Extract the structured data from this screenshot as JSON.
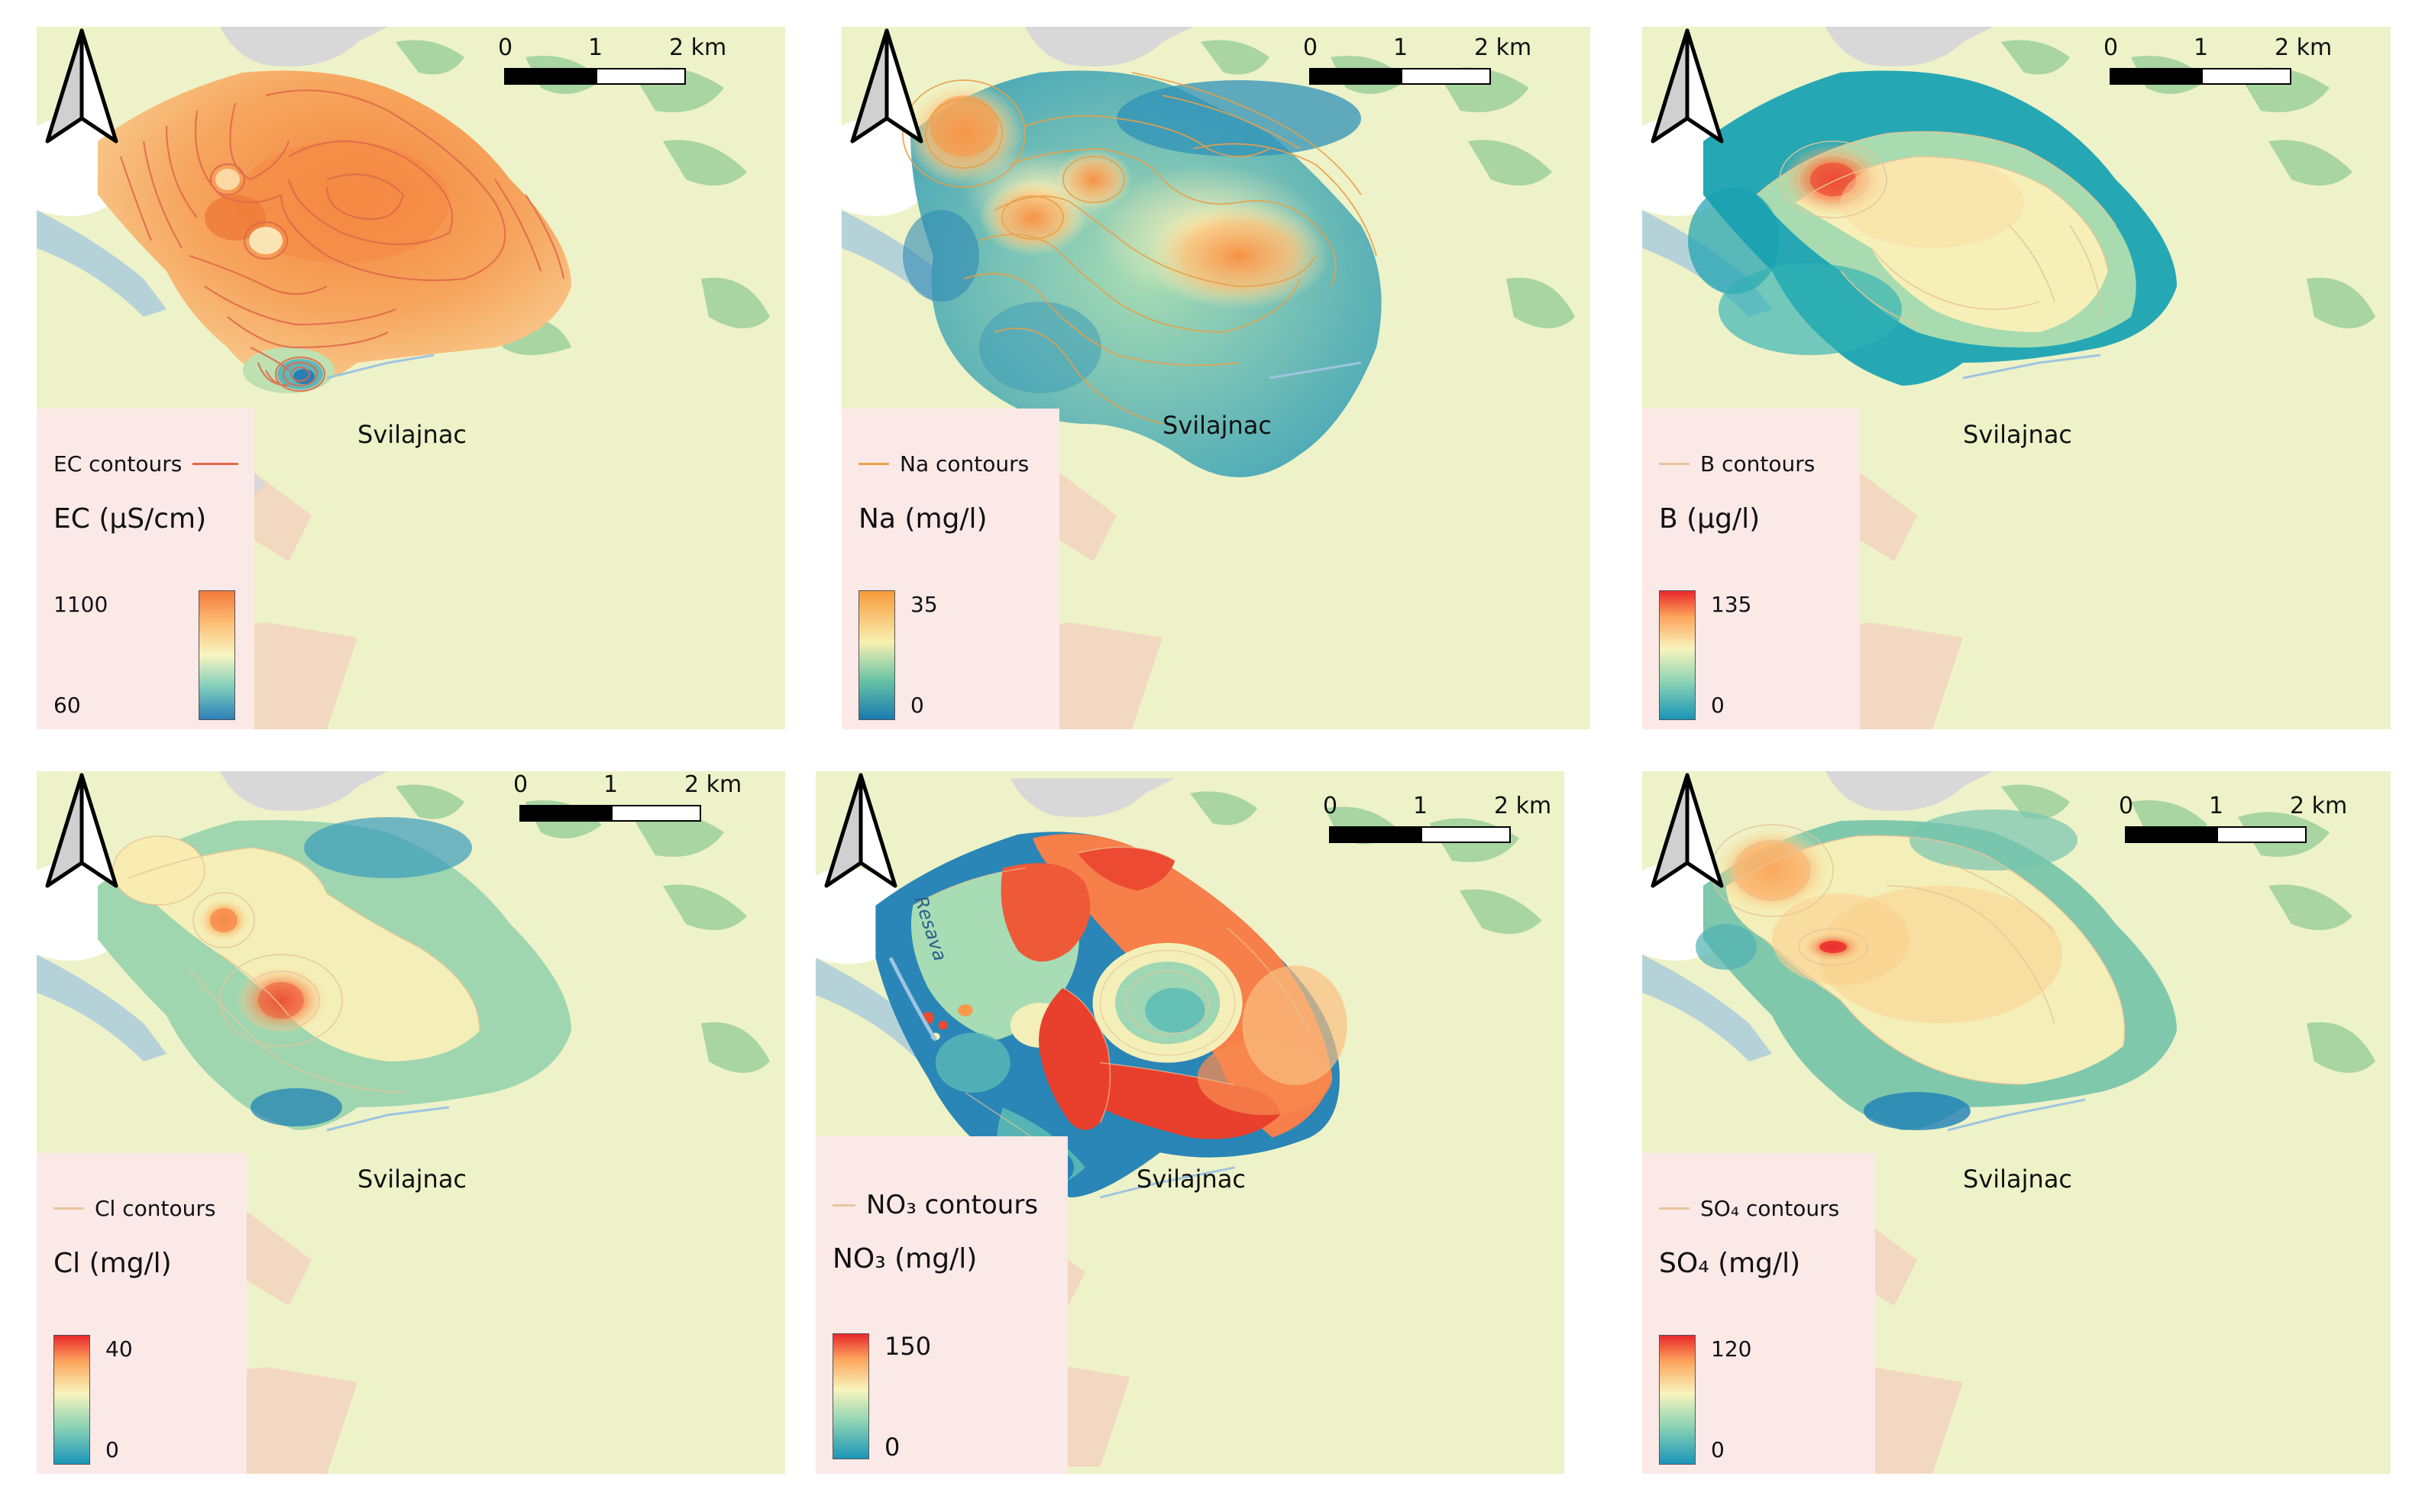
{
  "figure": {
    "panels": [
      {
        "id": "ec",
        "town": "Svilajnac",
        "scale": {
          "tick0": "0",
          "tick1": "1",
          "tick2": "2 km"
        },
        "legend": {
          "contours_label": "EC contours",
          "title": "EC (μS/cm)",
          "max": "1100",
          "min": "60",
          "contour_color": "#e0684a"
        }
      },
      {
        "id": "na",
        "town": "Svilajnac",
        "scale": {
          "tick0": "0",
          "tick1": "1",
          "tick2": "2 km"
        },
        "legend": {
          "contours_label": "Na contours",
          "title": "Na (mg/l)",
          "max": "35",
          "min": "0",
          "contour_color": "#e8a04a"
        }
      },
      {
        "id": "b",
        "town": "Svilajnac",
        "scale": {
          "tick0": "0",
          "tick1": "1",
          "tick2": "2 km"
        },
        "legend": {
          "contours_label": "B contours",
          "title": "B (μg/l)",
          "max": "135",
          "min": "0",
          "contour_color": "#e8c49a"
        }
      },
      {
        "id": "cl",
        "town": "Svilajnac",
        "scale": {
          "tick0": "0",
          "tick1": "1",
          "tick2": "2 km"
        },
        "legend": {
          "contours_label": "Cl contours",
          "title": "Cl (mg/l)",
          "max": "40",
          "min": "0",
          "contour_color": "#e8c49a"
        }
      },
      {
        "id": "no3",
        "town": "Svilajnac",
        "river": "Resava",
        "scale": {
          "tick0": "0",
          "tick1": "1",
          "tick2": "2 km"
        },
        "legend": {
          "contours_label": "NO₃ contours",
          "title": "NO₃ (mg/l)",
          "max": "150",
          "min": "0",
          "contour_color": "#e8c49a"
        }
      },
      {
        "id": "so4",
        "town": "Svilajnac",
        "scale": {
          "tick0": "0",
          "tick1": "1",
          "tick2": "2 km"
        },
        "legend": {
          "contours_label": "SO₄ contours",
          "title": "SO₄ (mg/l)",
          "max": "120",
          "min": "0",
          "contour_color": "#e8c49a"
        }
      }
    ],
    "colors": {
      "land": "#eef2c8",
      "forest": "#a8d5a2",
      "river": "#9ec5e0",
      "urban": "#f2d8c0",
      "settlement": "#d8d8d8",
      "legend_bg": "#fbe9e8"
    }
  }
}
